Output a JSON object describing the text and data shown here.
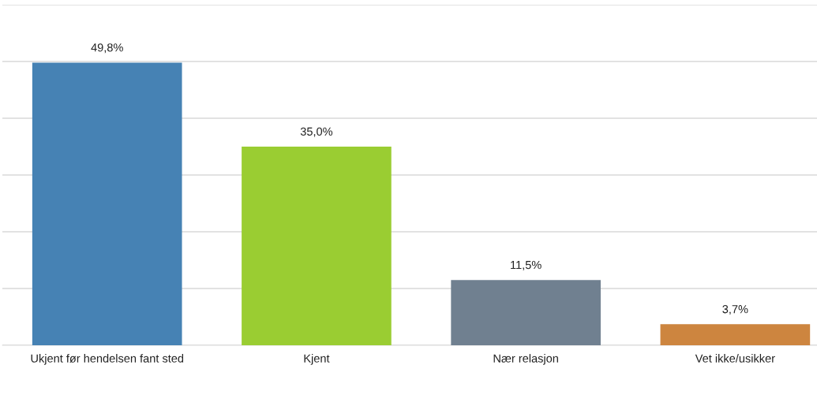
{
  "chart_data": {
    "type": "bar",
    "categories": [
      "Ukjent før hendelsen fant sted",
      "Kjent",
      "Nær relasjon",
      "Vet ikke/usikker"
    ],
    "values": [
      49.8,
      35.0,
      11.5,
      3.7
    ],
    "colors": [
      "#4682b4",
      "#9acd32",
      "#708090",
      "#cd853f"
    ],
    "value_labels": [
      "49,8%",
      "35,0%",
      "11,5%",
      "3,7%"
    ],
    "ylim": [
      0,
      60
    ],
    "yticks": [
      {
        "value": 0,
        "label": null
      },
      {
        "value": 10,
        "label": null
      },
      {
        "value": 20,
        "label": null
      },
      {
        "value": 30,
        "label": null
      },
      {
        "value": 40,
        "label": null
      },
      {
        "value": 50,
        "label": null
      },
      {
        "value": 60,
        "label": null
      }
    ],
    "tick_labels": "x",
    "grid": "y",
    "legend": false
  }
}
